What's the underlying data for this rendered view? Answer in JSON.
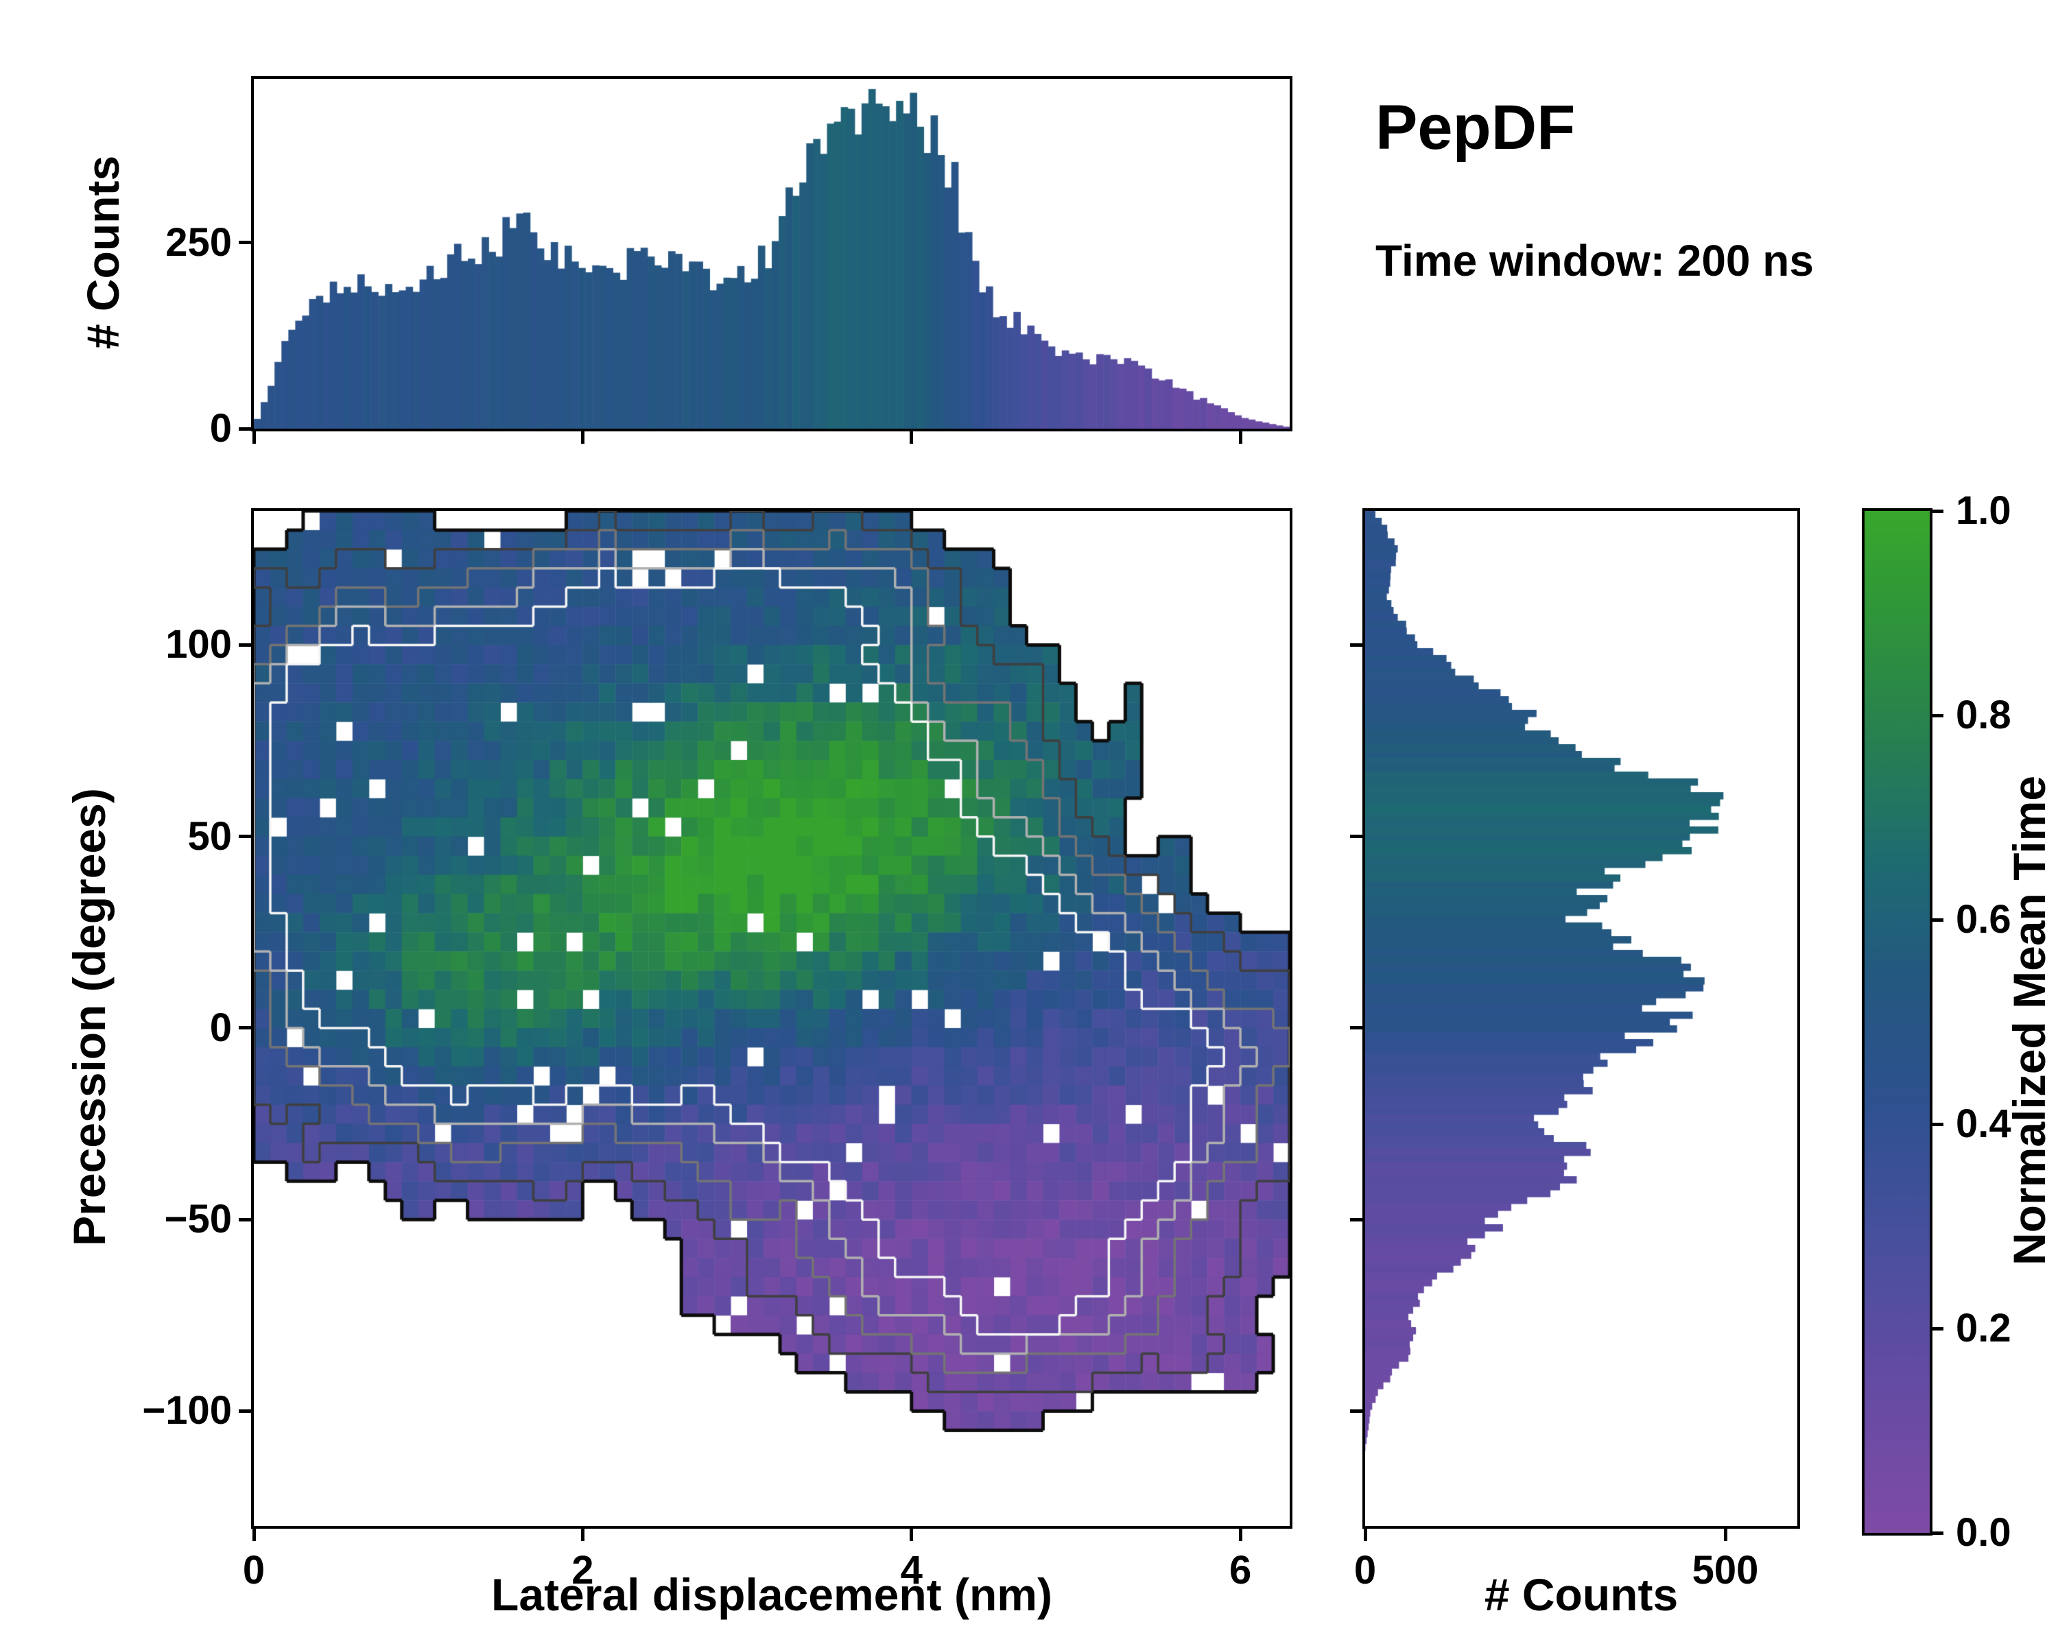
{
  "title": "PepDF",
  "subtitle": "Time window: 200 ns",
  "colorbar": {
    "label": "Normalized Mean Time",
    "ticks": {
      "values": [
        0,
        0.2,
        0.4,
        0.6,
        0.8,
        1.0
      ],
      "labels": [
        "0.0",
        "0.2",
        "0.4",
        "0.6",
        "0.8",
        "1.0"
      ]
    },
    "stops": [
      [
        0,
        "#7e4ba5"
      ],
      [
        0.15,
        "#644ba3"
      ],
      [
        0.3,
        "#45509c"
      ],
      [
        0.42,
        "#2e518f"
      ],
      [
        0.55,
        "#23597f"
      ],
      [
        0.65,
        "#1e6a72"
      ],
      [
        0.78,
        "#27804f"
      ],
      [
        0.9,
        "#2f9539"
      ],
      [
        1,
        "#38a72c"
      ]
    ]
  },
  "chart_data": [
    {
      "id": "top_histogram",
      "type": "bar",
      "orientation": "vertical",
      "xlabel": "",
      "ylabel": "# Counts",
      "x_range": [
        0,
        6.3
      ],
      "y_range": [
        0,
        470
      ],
      "x_ticks": {
        "values": [
          0,
          2,
          4,
          6
        ],
        "labels": []
      },
      "y_ticks": {
        "values": [
          0,
          250
        ],
        "labels": [
          "0",
          "250"
        ]
      },
      "n_bars": 150,
      "profile": [
        [
          0,
          0
        ],
        [
          0.1,
          60
        ],
        [
          0.2,
          115
        ],
        [
          0.3,
          150
        ],
        [
          0.4,
          170
        ],
        [
          0.5,
          190
        ],
        [
          0.7,
          195
        ],
        [
          0.9,
          180
        ],
        [
          1.1,
          205
        ],
        [
          1.3,
          235
        ],
        [
          1.5,
          255
        ],
        [
          1.6,
          272
        ],
        [
          1.7,
          262
        ],
        [
          1.8,
          240
        ],
        [
          2.0,
          225
        ],
        [
          2.1,
          205
        ],
        [
          2.3,
          225
        ],
        [
          2.5,
          235
        ],
        [
          2.7,
          215
        ],
        [
          2.9,
          195
        ],
        [
          3.0,
          215
        ],
        [
          3.1,
          230
        ],
        [
          3.2,
          255
        ],
        [
          3.3,
          330
        ],
        [
          3.4,
          372
        ],
        [
          3.5,
          395
        ],
        [
          3.6,
          420
        ],
        [
          3.7,
          432
        ],
        [
          3.75,
          448
        ],
        [
          3.85,
          432
        ],
        [
          3.95,
          440
        ],
        [
          4.05,
          418
        ],
        [
          4.15,
          378
        ],
        [
          4.25,
          338
        ],
        [
          4.35,
          252
        ],
        [
          4.45,
          182
        ],
        [
          4.55,
          152
        ],
        [
          4.65,
          142
        ],
        [
          4.75,
          122
        ],
        [
          4.85,
          112
        ],
        [
          5.0,
          100
        ],
        [
          5.2,
          92
        ],
        [
          5.3,
          96
        ],
        [
          5.4,
          86
        ],
        [
          5.5,
          70
        ],
        [
          5.6,
          56
        ],
        [
          5.8,
          36
        ],
        [
          6.0,
          16
        ],
        [
          6.2,
          6
        ],
        [
          6.3,
          2
        ]
      ],
      "mean_time_profile": [
        [
          0,
          0.45
        ],
        [
          1,
          0.47
        ],
        [
          2,
          0.5
        ],
        [
          3,
          0.53
        ],
        [
          3.6,
          0.62
        ],
        [
          4.1,
          0.58
        ],
        [
          4.4,
          0.4
        ],
        [
          4.8,
          0.28
        ],
        [
          5.2,
          0.2
        ],
        [
          5.6,
          0.14
        ],
        [
          6.3,
          0.1
        ]
      ]
    },
    {
      "id": "main_heatmap",
      "type": "heatmap",
      "xlabel": "Lateral displacement (nm)",
      "ylabel": "Precession (degrees)",
      "value_label": "Normalized Mean Time",
      "x_range": [
        0,
        6.3
      ],
      "y_range": [
        -130,
        135
      ],
      "x_ticks": {
        "values": [
          0,
          2,
          4,
          6
        ],
        "labels": [
          "0",
          "2",
          "4",
          "6"
        ]
      },
      "y_ticks": {
        "values": [
          -100,
          -50,
          0,
          50,
          100
        ],
        "labels": [
          "−100",
          "−50",
          "0",
          "50",
          "100"
        ]
      },
      "grid": {
        "nx": 63,
        "ny": 53
      },
      "density_blobs": [
        [
          1.0,
          1.4,
          1.1,
          55,
          35
        ],
        [
          0.9,
          2.6,
          1.1,
          80,
          28
        ],
        [
          1.0,
          3.3,
          1.0,
          45,
          32
        ],
        [
          0.95,
          3.8,
          1.1,
          5,
          30
        ],
        [
          0.85,
          1.2,
          0.9,
          5,
          30
        ],
        [
          0.8,
          4.5,
          1.0,
          -40,
          30
        ],
        [
          0.6,
          5.3,
          0.8,
          -10,
          25
        ],
        [
          0.55,
          4.7,
          0.9,
          -75,
          16
        ],
        [
          0.5,
          0.5,
          0.6,
          80,
          30
        ],
        [
          0.45,
          3.2,
          0.9,
          115,
          14
        ]
      ],
      "mean_time_base": [
        [
          -110,
          0.1
        ],
        [
          -60,
          0.18
        ],
        [
          -20,
          0.3
        ],
        [
          20,
          0.38
        ],
        [
          60,
          0.47
        ],
        [
          110,
          0.52
        ]
      ],
      "mean_time_bumps": [
        [
          0.4,
          3.5,
          1.1,
          55,
          30
        ],
        [
          0.34,
          1.3,
          0.8,
          12,
          22
        ],
        [
          0.25,
          2.9,
          0.9,
          30,
          25
        ],
        [
          -0.14,
          4.8,
          1.2,
          -55,
          30
        ],
        [
          -0.1,
          2.0,
          1.4,
          110,
          18
        ]
      ],
      "contour_thresholds": [
        0.22,
        0.38,
        0.55,
        0.72,
        0.88
      ],
      "contour_colors": [
        "#0d0d0d",
        "#3f3f3f",
        "#747474",
        "#b0b0b0",
        "#f5f5f5"
      ],
      "noise_amp": 0.26,
      "hole_fraction": 0.035
    },
    {
      "id": "right_histogram",
      "type": "bar",
      "orientation": "horizontal",
      "xlabel": "# Counts",
      "ylabel": "",
      "x_range": [
        0,
        600
      ],
      "y_range": [
        -130,
        135
      ],
      "x_ticks": {
        "values": [
          0,
          500
        ],
        "labels": [
          "0",
          "500"
        ]
      },
      "y_ticks": {
        "values": [
          -100,
          -50,
          0,
          50,
          100
        ],
        "labels": []
      },
      "n_bars": 148,
      "profile": [
        [
          -110,
          0
        ],
        [
          -105,
          4
        ],
        [
          -100,
          8
        ],
        [
          -96,
          16
        ],
        [
          -92,
          30
        ],
        [
          -88,
          46
        ],
        [
          -85,
          60
        ],
        [
          -80,
          74
        ],
        [
          -76,
          64
        ],
        [
          -70,
          80
        ],
        [
          -65,
          100
        ],
        [
          -60,
          130
        ],
        [
          -55,
          160
        ],
        [
          -50,
          186
        ],
        [
          -45,
          230
        ],
        [
          -40,
          270
        ],
        [
          -35,
          304
        ],
        [
          -30,
          286
        ],
        [
          -25,
          256
        ],
        [
          -20,
          270
        ],
        [
          -16,
          290
        ],
        [
          -12,
          312
        ],
        [
          -8,
          350
        ],
        [
          -5,
          390
        ],
        [
          0,
          400
        ],
        [
          5,
          420
        ],
        [
          8,
          440
        ],
        [
          12,
          468
        ],
        [
          15,
          440
        ],
        [
          20,
          390
        ],
        [
          25,
          332
        ],
        [
          30,
          292
        ],
        [
          35,
          312
        ],
        [
          40,
          350
        ],
        [
          45,
          410
        ],
        [
          50,
          450
        ],
        [
          53,
          480
        ],
        [
          57,
          534
        ],
        [
          60,
          500
        ],
        [
          65,
          420
        ],
        [
          70,
          340
        ],
        [
          75,
          280
        ],
        [
          80,
          230
        ],
        [
          85,
          200
        ],
        [
          90,
          160
        ],
        [
          95,
          120
        ],
        [
          100,
          72
        ],
        [
          105,
          56
        ],
        [
          112,
          30
        ],
        [
          118,
          36
        ],
        [
          125,
          46
        ],
        [
          132,
          24
        ],
        [
          135,
          10
        ]
      ],
      "mean_time_profile": [
        [
          -110,
          0.08
        ],
        [
          -80,
          0.12
        ],
        [
          -55,
          0.16
        ],
        [
          -35,
          0.22
        ],
        [
          -20,
          0.3
        ],
        [
          -8,
          0.38
        ],
        [
          0,
          0.44
        ],
        [
          12,
          0.5
        ],
        [
          25,
          0.55
        ],
        [
          40,
          0.6
        ],
        [
          55,
          0.64
        ],
        [
          70,
          0.58
        ],
        [
          85,
          0.5
        ],
        [
          100,
          0.46
        ],
        [
          132,
          0.44
        ]
      ]
    }
  ]
}
